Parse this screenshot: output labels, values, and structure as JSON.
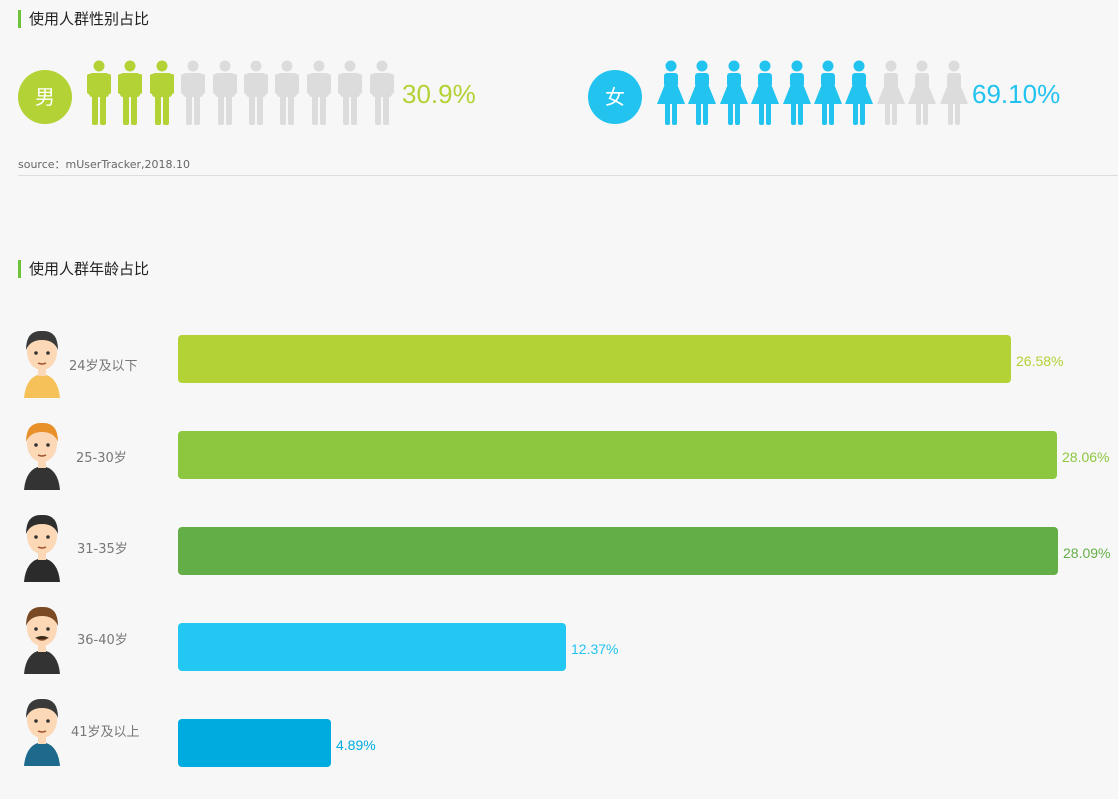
{
  "gender_section": {
    "title": "使用人群性别占比",
    "male": {
      "label": "男",
      "percent_text": "30.9%",
      "filled_icons": 3,
      "total_icons": 10,
      "color": "#b2d235"
    },
    "female": {
      "label": "女",
      "percent_text": "69.10%",
      "filled_icons": 7,
      "total_icons": 10,
      "color": "#22c3ef"
    },
    "inactive_color": "#dcdcdc",
    "source": "source：mUserTracker,2018.10"
  },
  "age_section": {
    "title": "使用人群年龄占比"
  },
  "chart_data": {
    "type": "bar",
    "orientation": "horizontal",
    "categories": [
      "24岁及以下",
      "25-30岁",
      "31-35岁",
      "36-40岁",
      "41岁及以上"
    ],
    "values": [
      26.58,
      28.06,
      28.09,
      12.37,
      4.89
    ],
    "value_labels": [
      "26.58%",
      "28.06%",
      "28.09%",
      "12.37%",
      "4.89%"
    ],
    "colors": [
      "#b2d235",
      "#8dc63f",
      "#64ae47",
      "#22c8f2",
      "#00acdf"
    ],
    "value_label_colors": [
      "#b2d235",
      "#8dc63f",
      "#64ae47",
      "#22c3ef",
      "#00acdf"
    ],
    "xlim": [
      0,
      28.09
    ],
    "avatars": [
      "young-man-avatar",
      "blond-man-avatar",
      "suit-man-avatar",
      "mustache-man-avatar",
      "older-man-avatar"
    ],
    "title": "",
    "xlabel": "",
    "ylabel": ""
  }
}
